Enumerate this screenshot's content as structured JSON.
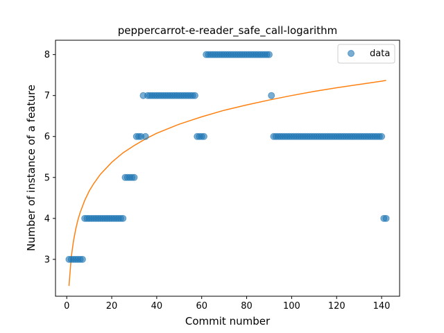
{
  "chart_data": {
    "type": "scatter",
    "title": "peppercarrot-e-reader_safe_call-logarithm",
    "xlabel": "Commit number",
    "ylabel": "Number of instance of a feature",
    "xlim": [
      -5,
      148
    ],
    "ylim": [
      2.1,
      8.35
    ],
    "xticks": [
      0,
      20,
      40,
      60,
      80,
      100,
      120,
      140
    ],
    "yticks": [
      3,
      4,
      5,
      6,
      7,
      8
    ],
    "grid": false,
    "legend": {
      "placement": "top-right",
      "entries": [
        "data"
      ]
    },
    "colors": {
      "data": "#1f77b4",
      "fit": "#ff7f0e"
    },
    "series": [
      {
        "name": "data",
        "kind": "scatter",
        "points": [
          [
            1,
            3
          ],
          [
            2,
            3
          ],
          [
            3,
            3
          ],
          [
            4,
            3
          ],
          [
            5,
            3
          ],
          [
            6,
            3
          ],
          [
            7,
            3
          ],
          [
            8,
            4
          ],
          [
            9,
            4
          ],
          [
            10,
            4
          ],
          [
            11,
            4
          ],
          [
            12,
            4
          ],
          [
            13,
            4
          ],
          [
            14,
            4
          ],
          [
            15,
            4
          ],
          [
            16,
            4
          ],
          [
            17,
            4
          ],
          [
            18,
            4
          ],
          [
            19,
            4
          ],
          [
            20,
            4
          ],
          [
            21,
            4
          ],
          [
            22,
            4
          ],
          [
            23,
            4
          ],
          [
            24,
            4
          ],
          [
            25,
            4
          ],
          [
            26,
            5
          ],
          [
            27,
            5
          ],
          [
            28,
            5
          ],
          [
            29,
            5
          ],
          [
            30,
            5
          ],
          [
            31,
            6
          ],
          [
            32,
            6
          ],
          [
            33,
            6
          ],
          [
            34,
            7
          ],
          [
            35,
            6
          ],
          [
            36,
            7
          ],
          [
            37,
            7
          ],
          [
            38,
            7
          ],
          [
            39,
            7
          ],
          [
            40,
            7
          ],
          [
            41,
            7
          ],
          [
            42,
            7
          ],
          [
            43,
            7
          ],
          [
            44,
            7
          ],
          [
            45,
            7
          ],
          [
            46,
            7
          ],
          [
            47,
            7
          ],
          [
            48,
            7
          ],
          [
            49,
            7
          ],
          [
            50,
            7
          ],
          [
            51,
            7
          ],
          [
            52,
            7
          ],
          [
            53,
            7
          ],
          [
            54,
            7
          ],
          [
            55,
            7
          ],
          [
            56,
            7
          ],
          [
            57,
            7
          ],
          [
            58,
            6
          ],
          [
            59,
            6
          ],
          [
            60,
            6
          ],
          [
            61,
            6
          ],
          [
            62,
            8
          ],
          [
            63,
            8
          ],
          [
            64,
            8
          ],
          [
            65,
            8
          ],
          [
            66,
            8
          ],
          [
            67,
            8
          ],
          [
            68,
            8
          ],
          [
            69,
            8
          ],
          [
            70,
            8
          ],
          [
            71,
            8
          ],
          [
            72,
            8
          ],
          [
            73,
            8
          ],
          [
            74,
            8
          ],
          [
            75,
            8
          ],
          [
            76,
            8
          ],
          [
            77,
            8
          ],
          [
            78,
            8
          ],
          [
            79,
            8
          ],
          [
            80,
            8
          ],
          [
            81,
            8
          ],
          [
            82,
            8
          ],
          [
            83,
            8
          ],
          [
            84,
            8
          ],
          [
            85,
            8
          ],
          [
            86,
            8
          ],
          [
            87,
            8
          ],
          [
            88,
            8
          ],
          [
            89,
            8
          ],
          [
            90,
            8
          ],
          [
            91,
            7
          ],
          [
            92,
            6
          ],
          [
            93,
            6
          ],
          [
            94,
            6
          ],
          [
            95,
            6
          ],
          [
            96,
            6
          ],
          [
            97,
            6
          ],
          [
            98,
            6
          ],
          [
            99,
            6
          ],
          [
            100,
            6
          ],
          [
            101,
            6
          ],
          [
            102,
            6
          ],
          [
            103,
            6
          ],
          [
            104,
            6
          ],
          [
            105,
            6
          ],
          [
            106,
            6
          ],
          [
            107,
            6
          ],
          [
            108,
            6
          ],
          [
            109,
            6
          ],
          [
            110,
            6
          ],
          [
            111,
            6
          ],
          [
            112,
            6
          ],
          [
            113,
            6
          ],
          [
            114,
            6
          ],
          [
            115,
            6
          ],
          [
            116,
            6
          ],
          [
            117,
            6
          ],
          [
            118,
            6
          ],
          [
            119,
            6
          ],
          [
            120,
            6
          ],
          [
            121,
            6
          ],
          [
            122,
            6
          ],
          [
            123,
            6
          ],
          [
            124,
            6
          ],
          [
            125,
            6
          ],
          [
            126,
            6
          ],
          [
            127,
            6
          ],
          [
            128,
            6
          ],
          [
            129,
            6
          ],
          [
            130,
            6
          ],
          [
            131,
            6
          ],
          [
            132,
            6
          ],
          [
            133,
            6
          ],
          [
            134,
            6
          ],
          [
            135,
            6
          ],
          [
            136,
            6
          ],
          [
            137,
            6
          ],
          [
            138,
            6
          ],
          [
            139,
            6
          ],
          [
            140,
            6
          ],
          [
            141,
            4
          ],
          [
            142,
            4
          ]
        ]
      },
      {
        "name": "",
        "kind": "line",
        "points": [
          [
            1,
            2.35
          ],
          [
            2,
            3.05
          ],
          [
            3,
            3.45
          ],
          [
            4,
            3.74
          ],
          [
            5,
            3.97
          ],
          [
            6,
            4.15
          ],
          [
            8,
            4.44
          ],
          [
            10,
            4.67
          ],
          [
            12,
            4.85
          ],
          [
            15,
            5.08
          ],
          [
            20,
            5.37
          ],
          [
            25,
            5.6
          ],
          [
            30,
            5.78
          ],
          [
            35,
            5.94
          ],
          [
            40,
            6.08
          ],
          [
            45,
            6.19
          ],
          [
            50,
            6.3
          ],
          [
            55,
            6.39
          ],
          [
            60,
            6.48
          ],
          [
            70,
            6.64
          ],
          [
            80,
            6.77
          ],
          [
            90,
            6.89
          ],
          [
            100,
            7.0
          ],
          [
            110,
            7.1
          ],
          [
            120,
            7.19
          ],
          [
            130,
            7.27
          ],
          [
            140,
            7.35
          ],
          [
            142,
            7.37
          ]
        ]
      }
    ]
  }
}
